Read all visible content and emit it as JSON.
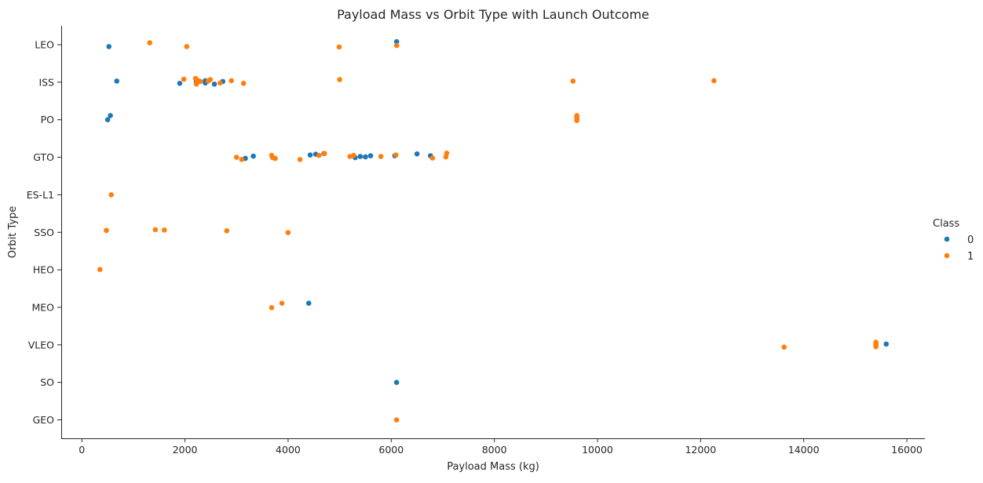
{
  "chart_data": {
    "type": "scatter",
    "title": "Payload Mass vs Orbit Type with Launch Outcome",
    "xlabel": "Payload Mass (kg)",
    "ylabel": "Orbit Type",
    "xlim": [
      -400,
      16350
    ],
    "xticks": [
      0,
      2000,
      4000,
      6000,
      8000,
      10000,
      12000,
      14000,
      16000
    ],
    "categories": [
      "LEO",
      "ISS",
      "PO",
      "GTO",
      "ES-L1",
      "SSO",
      "HEO",
      "MEO",
      "VLEO",
      "SO",
      "GEO"
    ],
    "legend": {
      "title": "Class",
      "position": "right"
    },
    "grid": false,
    "colors": {
      "0": "#1f77b4",
      "1": "#ff7f0e"
    },
    "series": [
      {
        "name": "0",
        "points": [
          {
            "x": 525,
            "y": "LEO",
            "j": -0.05
          },
          {
            "x": 6105,
            "y": "LEO",
            "j": 0.08
          },
          {
            "x": 677,
            "y": "ISS",
            "j": 0.03
          },
          {
            "x": 1898,
            "y": "ISS",
            "j": -0.03
          },
          {
            "x": 2395,
            "y": "ISS",
            "j": -0.02
          },
          {
            "x": 2570,
            "y": "ISS",
            "j": -0.05
          },
          {
            "x": 2734,
            "y": "ISS",
            "j": 0.02
          },
          {
            "x": 2395,
            "y": "ISS",
            "j": 0.04
          },
          {
            "x": 2220,
            "y": "ISS",
            "j": 0.02
          },
          {
            "x": 500,
            "y": "PO",
            "j": 0.0
          },
          {
            "x": 553,
            "y": "PO",
            "j": 0.11
          },
          {
            "x": 3170,
            "y": "GTO",
            "j": -0.03
          },
          {
            "x": 3325,
            "y": "GTO",
            "j": 0.03
          },
          {
            "x": 4428,
            "y": "GTO",
            "j": 0.06
          },
          {
            "x": 4535,
            "y": "GTO",
            "j": 0.08
          },
          {
            "x": 4696,
            "y": "GTO",
            "j": 0.1
          },
          {
            "x": 5300,
            "y": "GTO",
            "j": -0.01
          },
          {
            "x": 5400,
            "y": "GTO",
            "j": 0.02
          },
          {
            "x": 5500,
            "y": "GTO",
            "j": 0.01
          },
          {
            "x": 5600,
            "y": "GTO",
            "j": 0.04
          },
          {
            "x": 6070,
            "y": "GTO",
            "j": 0.04
          },
          {
            "x": 6500,
            "y": "GTO",
            "j": 0.09
          },
          {
            "x": 6761,
            "y": "GTO",
            "j": 0.04
          },
          {
            "x": 4400,
            "y": "MEO",
            "j": 0.11
          },
          {
            "x": 15600,
            "y": "VLEO",
            "j": 0.02
          },
          {
            "x": 6104,
            "y": "SO",
            "j": 0.0
          }
        ]
      },
      {
        "name": "1",
        "points": [
          {
            "x": 1316,
            "y": "LEO",
            "j": 0.05
          },
          {
            "x": 2034,
            "y": "LEO",
            "j": -0.05
          },
          {
            "x": 4990,
            "y": "LEO",
            "j": -0.06
          },
          {
            "x": 6105,
            "y": "LEO",
            "j": -0.02
          },
          {
            "x": 1977,
            "y": "ISS",
            "j": 0.08
          },
          {
            "x": 2205,
            "y": "ISS",
            "j": 0.1
          },
          {
            "x": 2232,
            "y": "ISS",
            "j": 0.06
          },
          {
            "x": 2270,
            "y": "ISS",
            "j": 0.03
          },
          {
            "x": 2300,
            "y": "ISS",
            "j": 0.02
          },
          {
            "x": 2222,
            "y": "ISS",
            "j": -0.05
          },
          {
            "x": 2450,
            "y": "ISS",
            "j": 0.03
          },
          {
            "x": 2490,
            "y": "ISS",
            "j": 0.07
          },
          {
            "x": 2680,
            "y": "ISS",
            "j": -0.02
          },
          {
            "x": 2900,
            "y": "ISS",
            "j": 0.04
          },
          {
            "x": 3136,
            "y": "ISS",
            "j": -0.03
          },
          {
            "x": 5000,
            "y": "ISS",
            "j": 0.07
          },
          {
            "x": 9525,
            "y": "ISS",
            "j": 0.03
          },
          {
            "x": 12259,
            "y": "ISS",
            "j": 0.04
          },
          {
            "x": 9600,
            "y": "PO",
            "j": 0.11
          },
          {
            "x": 9600,
            "y": "PO",
            "j": 0.07
          },
          {
            "x": 9600,
            "y": "PO",
            "j": 0.03
          },
          {
            "x": 9600,
            "y": "PO",
            "j": -0.02
          },
          {
            "x": 3000,
            "y": "GTO",
            "j": 0.0
          },
          {
            "x": 3100,
            "y": "GTO",
            "j": -0.06
          },
          {
            "x": 3681,
            "y": "GTO",
            "j": 0.05
          },
          {
            "x": 3700,
            "y": "GTO",
            "j": -0.01
          },
          {
            "x": 3750,
            "y": "GTO",
            "j": -0.03
          },
          {
            "x": 4230,
            "y": "GTO",
            "j": -0.06
          },
          {
            "x": 4600,
            "y": "GTO",
            "j": 0.05
          },
          {
            "x": 4707,
            "y": "GTO",
            "j": 0.1
          },
          {
            "x": 5200,
            "y": "GTO",
            "j": 0.02
          },
          {
            "x": 5271,
            "y": "GTO",
            "j": 0.05
          },
          {
            "x": 5800,
            "y": "GTO",
            "j": 0.02
          },
          {
            "x": 6092,
            "y": "GTO",
            "j": 0.06
          },
          {
            "x": 6800,
            "y": "GTO",
            "j": -0.02
          },
          {
            "x": 7060,
            "y": "GTO",
            "j": 0.01
          },
          {
            "x": 7076,
            "y": "GTO",
            "j": 0.11
          },
          {
            "x": 570,
            "y": "ES-L1",
            "j": 0.0
          },
          {
            "x": 475,
            "y": "SSO",
            "j": 0.05
          },
          {
            "x": 1425,
            "y": "SSO",
            "j": 0.07
          },
          {
            "x": 1600,
            "y": "SSO",
            "j": 0.06
          },
          {
            "x": 2810,
            "y": "SSO",
            "j": 0.04
          },
          {
            "x": 4000,
            "y": "SSO",
            "j": -0.01
          },
          {
            "x": 350,
            "y": "HEO",
            "j": 0.01
          },
          {
            "x": 3681,
            "y": "MEO",
            "j": -0.01
          },
          {
            "x": 3880,
            "y": "MEO",
            "j": 0.11
          },
          {
            "x": 13620,
            "y": "VLEO",
            "j": -0.06
          },
          {
            "x": 15400,
            "y": "VLEO",
            "j": 0.07
          },
          {
            "x": 15400,
            "y": "VLEO",
            "j": 0.05
          },
          {
            "x": 15400,
            "y": "VLEO",
            "j": 0.03
          },
          {
            "x": 15400,
            "y": "VLEO",
            "j": 0.0
          },
          {
            "x": 15400,
            "y": "VLEO",
            "j": -0.02
          },
          {
            "x": 15400,
            "y": "VLEO",
            "j": -0.05
          },
          {
            "x": 6104,
            "y": "GEO",
            "j": 0.0
          }
        ]
      }
    ]
  }
}
